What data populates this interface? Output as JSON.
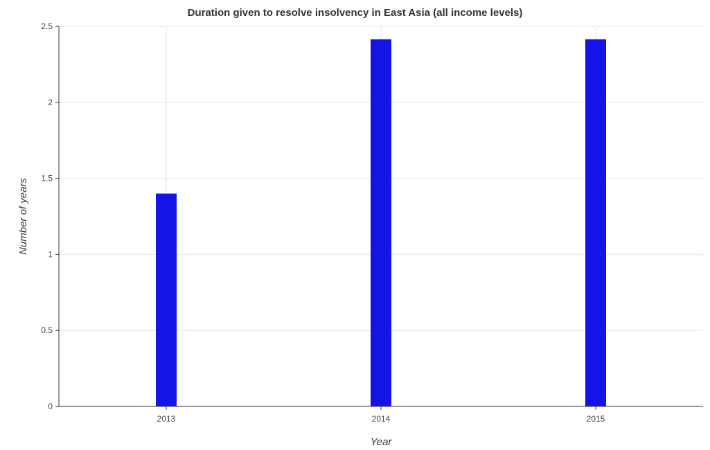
{
  "chart_data": {
    "type": "bar",
    "title": "Duration given to resolve insolvency in East Asia (all income levels)",
    "xlabel": "Year",
    "ylabel": "Number of years",
    "categories": [
      "2013",
      "2014",
      "2015"
    ],
    "values": [
      1.4,
      2.415,
      2.415
    ],
    "ylim": [
      0,
      2.5
    ],
    "yticks": [
      0,
      0.5,
      1,
      1.5,
      2,
      2.5
    ],
    "ytick_labels": [
      "0",
      "0.5",
      "1",
      "1.5",
      "2",
      "2.5"
    ],
    "grid": true,
    "bar_color": "#1414e6"
  }
}
